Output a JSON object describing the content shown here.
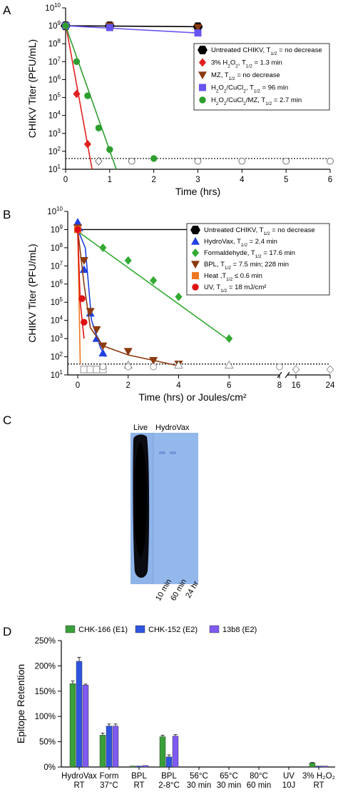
{
  "panels": {
    "a": "A",
    "b": "B",
    "c": "C",
    "d": "D"
  },
  "chart_data": [
    {
      "type": "scatter",
      "panel": "A",
      "xlabel": "Time (hrs)",
      "ylabel": "CHIKV Titer (PFU/mL)",
      "xlim": [
        0,
        6
      ],
      "ylim_log10": [
        1,
        10
      ],
      "log_y": true,
      "xticks": [
        "0",
        "1",
        "2",
        "3",
        "4",
        "5",
        "6"
      ],
      "yticks": [
        "10¹",
        "10²",
        "10³",
        "10⁴",
        "10⁵",
        "10⁶",
        "10⁷",
        "10⁸",
        "10⁹",
        "10¹⁰"
      ],
      "detection_limit": 1.6,
      "legend_position": "right",
      "series": [
        {
          "name": "Untreated CHIKV, T1/2 = no decrease",
          "marker": "hexagon",
          "color": "#000000",
          "x": [
            0,
            1,
            3
          ],
          "y_log10": [
            9.0,
            9.0,
            8.95
          ],
          "fit": [
            [
              0,
              9.0
            ],
            [
              3,
              8.95
            ]
          ]
        },
        {
          "name": "3% H2O2, T1/2 = 1.3 min",
          "marker": "diamond",
          "color": "#e02020",
          "x": [
            0,
            0.25,
            0.5
          ],
          "y_log10": [
            9.0,
            5.2,
            2.4
          ],
          "fit": [
            [
              0,
              9.1
            ],
            [
              0.6,
              1.0
            ]
          ]
        },
        {
          "name": "MZ, T1/2 = no decrease",
          "marker": "triangle-down",
          "color": "#8b3a0f",
          "x": [
            0,
            1,
            3
          ],
          "y_log10": [
            9.0,
            9.0,
            8.9
          ],
          "fit": []
        },
        {
          "name": "H2O2/CuCl2, T1/2 = 96 min",
          "marker": "square",
          "color": "#6655ee",
          "x": [
            0,
            1,
            3
          ],
          "y_log10": [
            9.0,
            8.9,
            8.6
          ],
          "fit": [
            [
              0,
              9.0
            ],
            [
              3,
              8.6
            ]
          ]
        },
        {
          "name": "H2O2/CuCl2/MZ, T1/2 = 2.7 min",
          "marker": "circle",
          "color": "#2e9e2e",
          "x": [
            0,
            0.25,
            0.5,
            0.75,
            1.0,
            2.0
          ],
          "y_log10": [
            9.0,
            7.0,
            5.1,
            3.3,
            2.1,
            1.6
          ],
          "fit": [
            [
              0,
              9.0
            ],
            [
              1.15,
              1.0
            ]
          ]
        },
        {
          "name": "",
          "marker": "open-circle",
          "color": "#666666",
          "x": [
            1.5,
            3,
            4,
            5,
            6
          ],
          "y_log10": [
            1.45,
            1.45,
            1.45,
            1.45,
            1.45
          ],
          "fit": []
        },
        {
          "name": "",
          "marker": "open-diamond",
          "color": "#666666",
          "x": [
            0.75
          ],
          "y_log10": [
            1.45
          ],
          "fit": []
        }
      ],
      "legend_parts": [
        [
          "Untreated CHIKV, T",
          "1/2",
          " = no decrease"
        ],
        [
          "3% H",
          "2",
          "O",
          "2",
          ", T",
          "1/2",
          " = 1.3 min"
        ],
        [
          "MZ, T",
          "1/2",
          " = no decrease"
        ],
        [
          "H",
          "2",
          "O",
          "2",
          "/CuCl",
          "2",
          ", T",
          "1/2",
          " = 96 min"
        ],
        [
          "H",
          "2",
          "O",
          "2",
          "/CuCl",
          "2",
          "/MZ, T",
          "1/2",
          " = 2.7 min"
        ]
      ]
    },
    {
      "type": "scatter",
      "panel": "B",
      "xlabel": "Time (hrs) or Joules/cm²",
      "ylabel": "CHIKV Titer (PFU/mL)",
      "broken_x_axis": true,
      "xticks": [
        "0",
        "2",
        "4",
        "6",
        "8",
        "16",
        "24"
      ],
      "ylim_log10": [
        1,
        10
      ],
      "log_y": true,
      "yticks": [
        "10¹",
        "10²",
        "10³",
        "10⁴",
        "10⁵",
        "10⁶",
        "10⁷",
        "10⁸",
        "10⁹",
        "10¹⁰"
      ],
      "detection_limit": 1.6,
      "legend_position": "right",
      "series": [
        {
          "name": "Untreated CHIKV, T1/2 = no decrease",
          "marker": "hexagon",
          "color": "#000000",
          "x": [
            20
          ],
          "y_log10": [
            9.0
          ],
          "fit": [
            [
              0,
              9.0
            ],
            [
              8,
              9.0
            ],
            [
              20,
              9.0
            ]
          ]
        },
        {
          "name": "HydroVax, T1/2 = 2.4 min",
          "marker": "triangle-up",
          "color": "#2040e0",
          "x": [
            0,
            0.05,
            0.25,
            0.5,
            0.75,
            1.0
          ],
          "y_log10": [
            9.4,
            9.1,
            6.8,
            4.4,
            3.0,
            2.2
          ],
          "fit": [
            [
              0,
              9.0
            ],
            [
              0.3,
              8.0
            ],
            [
              0.55,
              4.0
            ],
            [
              0.9,
              2.5
            ],
            [
              1.1,
              2.0
            ]
          ]
        },
        {
          "name": "Formaldehyde, T1/2 = 17.6 min",
          "marker": "diamond",
          "color": "#33aa33",
          "x": [
            0,
            1,
            2,
            3,
            4,
            6
          ],
          "y_log10": [
            9.0,
            8.0,
            7.3,
            6.2,
            5.3,
            3.0
          ],
          "fit": [
            [
              0,
              8.9
            ],
            [
              6,
              2.9
            ]
          ]
        },
        {
          "name": "BPL, T1/2 = 7.5 min; 228 min",
          "marker": "triangle-down",
          "color": "#8b3a0f",
          "x": [
            0,
            0.25,
            0.5,
            0.75,
            1,
            2,
            3,
            4
          ],
          "y_log10": [
            9.1,
            7.3,
            4.5,
            3.5,
            2.6,
            2.3,
            1.8,
            1.6
          ],
          "fit": [
            [
              0,
              9.0
            ],
            [
              0.25,
              6.0
            ],
            [
              0.5,
              3.6
            ],
            [
              1,
              2.6
            ],
            [
              2,
              2.1
            ],
            [
              4,
              1.5
            ]
          ]
        },
        {
          "name": "Heat, T1/2 ≤ 0.6 min",
          "marker": "square",
          "color": "#ee7722",
          "x": [
            0
          ],
          "y_log10": [
            9.0
          ],
          "fit": [
            [
              0,
              9.0
            ],
            [
              0.1,
              1.6
            ]
          ]
        },
        {
          "name": "UV, T1/2 = 18 mJ/cm²",
          "marker": "circle",
          "color": "#e01010",
          "x": [
            0,
            0.17,
            0.25
          ],
          "y_log10": [
            9.0,
            5.2,
            3.9
          ],
          "fit": [
            [
              0,
              9.0
            ],
            [
              0.1,
              5.0
            ],
            [
              0.25,
              3.0
            ]
          ]
        },
        {
          "name": "",
          "marker": "open-square",
          "color": "#888888",
          "x": [
            0.25,
            0.5,
            0.75,
            1.0
          ],
          "y_log10": [
            1.3,
            1.3,
            1.3,
            1.3
          ],
          "fit": []
        },
        {
          "name": "",
          "marker": "open-triangle",
          "color": "#888888",
          "x": [
            2,
            4,
            6
          ],
          "y_log10": [
            1.55,
            1.55,
            1.55
          ],
          "fit": []
        },
        {
          "name": "",
          "marker": "open-circle",
          "color": "#888888",
          "x": [
            1,
            2,
            3,
            8
          ],
          "y_log10": [
            1.45,
            1.45,
            1.45,
            1.45
          ],
          "fit": []
        },
        {
          "name": "",
          "marker": "open-diamond",
          "color": "#888888",
          "x": [
            16,
            24
          ],
          "y_log10": [
            1.3,
            1.3
          ],
          "fit": []
        }
      ],
      "legend_parts": [
        [
          "Untreated CHIKV, T",
          "1/2",
          " = no decrease"
        ],
        [
          "HydroVax, T",
          "1/2",
          " = 2.4 min"
        ],
        [
          "Formaldehyde, T",
          "1/2",
          " = 17.6 min"
        ],
        [
          "BPL, T",
          "1/2",
          " = 7.5 min; 228 min"
        ],
        [
          "Heat ,T",
          "1/2",
          " ≤ 0.6 min"
        ],
        [
          "UV, T",
          "1/2",
          " = 18 mJ/cm²"
        ]
      ]
    },
    {
      "type": "bar",
      "panel": "D",
      "ylabel": "Epitope Retention",
      "ylim": [
        0,
        250
      ],
      "yticks": [
        "0%",
        "50%",
        "100%",
        "150%",
        "200%",
        "250%"
      ],
      "legend_position": "top",
      "categories": [
        [
          "HydroVax",
          "RT"
        ],
        [
          "Form",
          "37°C"
        ],
        [
          "BPL",
          "RT"
        ],
        [
          "BPL",
          "2-8°C"
        ],
        [
          "56°C",
          "30 min"
        ],
        [
          "65°C",
          "30 min"
        ],
        [
          "80°C",
          "60 min"
        ],
        [
          "UV",
          "10J"
        ],
        [
          "3% H₂O₂",
          "RT"
        ]
      ],
      "series": [
        {
          "name": "CHK-166 (E1)",
          "color": "#3aa03a",
          "values": [
            165,
            63,
            2,
            60,
            0,
            0,
            0,
            0,
            8
          ],
          "errors": [
            5,
            4,
            0,
            3,
            0,
            0,
            0,
            0,
            1
          ]
        },
        {
          "name": "CHK-152 (E2)",
          "color": "#2f55e0",
          "values": [
            209,
            81,
            2,
            20,
            0,
            0,
            0,
            0,
            2
          ],
          "errors": [
            8,
            4,
            0,
            4,
            0,
            0,
            0,
            0,
            0
          ]
        },
        {
          "name": "13b8 (E2)",
          "color": "#7f5af0",
          "values": [
            162,
            81,
            3,
            61,
            0,
            0,
            0,
            0,
            2
          ],
          "errors": [
            2,
            4,
            0,
            3,
            0,
            0,
            0,
            0,
            0
          ]
        }
      ]
    }
  ],
  "gel": {
    "lane_labels": [
      "Live",
      "HydroVax"
    ],
    "time_labels": [
      "10 min",
      "60 min",
      "24 hr"
    ]
  }
}
